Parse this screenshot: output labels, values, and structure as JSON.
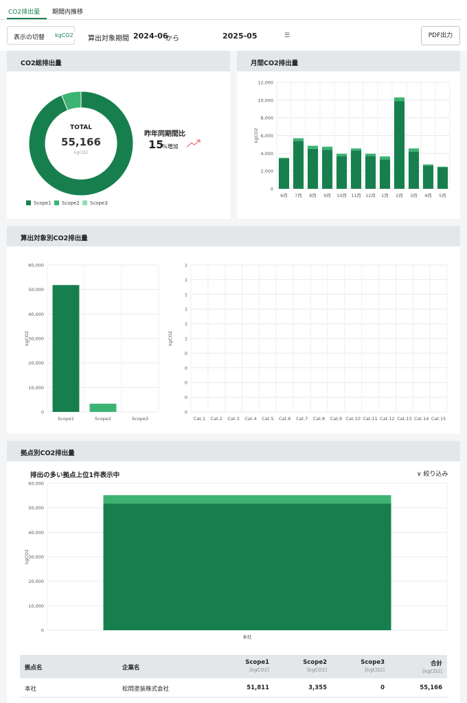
{
  "tabs": [
    {
      "label": "CO2排出量",
      "active": true
    },
    {
      "label": "期間内推移",
      "active": false
    }
  ],
  "toolbar": {
    "toggle_label": "表示の切替",
    "unit_badge": "kgCO2",
    "period_label": "算出対象期間",
    "period_start": "2024-06",
    "period_from": "から",
    "period_end": "2025-05",
    "pdf_label": "PDF出力"
  },
  "colors": {
    "scope1": "#177f4e",
    "scope2": "#3db373",
    "scope3": "#8fe0b0",
    "header_bg": "#e4e7ea",
    "accent": "#1a7f4f"
  },
  "total_panel": {
    "title": "CO2総排出量",
    "center_label": "TOTAL",
    "center_value": "55,166",
    "center_unit": "kgCO2",
    "yoy_label": "昨年同期間比",
    "yoy_value": "15",
    "yoy_unit": "%増加",
    "trend_icon": "trend-up-icon",
    "legend": [
      "Scope1",
      "Scope2",
      "Scope3"
    ]
  },
  "monthly_panel": {
    "title": "月間CO2排出量"
  },
  "target_panel": {
    "title": "算出対象別CO2排出量"
  },
  "site_panel": {
    "title": "拠点別CO2排出量",
    "subtitle": "排出の多い拠点上位1件表示中",
    "filter_label": "絞り込み",
    "filter_icon": "chevron-down-icon"
  },
  "table": {
    "headers": [
      {
        "label": "拠点名",
        "unit": ""
      },
      {
        "label": "企業名",
        "unit": ""
      },
      {
        "label": "Scope1",
        "unit": "[kgCO2]"
      },
      {
        "label": "Scope2",
        "unit": "[kgCO2]"
      },
      {
        "label": "Scope3",
        "unit": "[kgCO2]"
      },
      {
        "label": "合計",
        "unit": "[kgCO2]"
      }
    ],
    "rows": [
      {
        "site": "本社",
        "company": "松岡塗装株式会社",
        "scope1": "51,811",
        "scope2": "3,355",
        "scope3": "0",
        "total": "55,166"
      }
    ]
  },
  "chart_data": [
    {
      "type": "pie",
      "style": "donut",
      "categories": [
        "Scope1",
        "Scope2",
        "Scope3"
      ],
      "values": [
        51811,
        3355,
        0
      ]
    },
    {
      "type": "bar",
      "stacked": true,
      "ylabel": "kgCO2",
      "ylim": [
        0,
        12000
      ],
      "yticks": [
        "0",
        "2,000",
        "4,000",
        "6,000",
        "8,000",
        "10,000",
        "12,000"
      ],
      "categories": [
        "6月",
        "7月",
        "8月",
        "9月",
        "10月",
        "11月",
        "12月",
        "1月",
        "2月",
        "3月",
        "4月",
        "5月"
      ],
      "series": [
        {
          "name": "Scope1",
          "values": [
            3400,
            5400,
            4500,
            4400,
            3700,
            4300,
            3700,
            3300,
            9900,
            4200,
            2600,
            2400
          ]
        },
        {
          "name": "Scope2",
          "values": [
            100,
            300,
            350,
            350,
            250,
            250,
            250,
            350,
            400,
            350,
            150,
            100
          ]
        }
      ],
      "grid": true
    },
    {
      "type": "bar",
      "ylabel": "kgCO2",
      "ylim": [
        0,
        60000
      ],
      "yticks": [
        "0",
        "10,000",
        "20,000",
        "30,000",
        "40,000",
        "50,000",
        "60,000"
      ],
      "categories": [
        "Scope1",
        "Scope2",
        "Scope3"
      ],
      "values": [
        51811,
        3355,
        0
      ],
      "grid": true
    },
    {
      "type": "bar",
      "ylabel": "kgCO2",
      "yticks": [
        "0",
        "0",
        "0",
        "0",
        "0",
        "1",
        "1",
        "1",
        "1",
        "1",
        "1"
      ],
      "categories": [
        "Cat.1",
        "Cat.2",
        "Cat.3",
        "Cat.4",
        "Cat.5",
        "Cat.6",
        "Cat.7",
        "Cat.8",
        "Cat.9",
        "Cat.10",
        "Cat.11",
        "Cat.12",
        "Cat.13",
        "Cat.14",
        "Cat.15"
      ],
      "values": [
        0,
        0,
        0,
        0,
        0,
        0,
        0,
        0,
        0,
        0,
        0,
        0,
        0,
        0,
        0
      ],
      "grid": true
    },
    {
      "type": "bar",
      "stacked": true,
      "ylabel": "kgCO2",
      "ylim": [
        0,
        60000
      ],
      "yticks": [
        "0",
        "10,000",
        "20,000",
        "30,000",
        "40,000",
        "50,000",
        "60,000"
      ],
      "categories": [
        "本社"
      ],
      "series": [
        {
          "name": "Scope1",
          "values": [
            51811
          ]
        },
        {
          "name": "Scope2",
          "values": [
            3355
          ]
        }
      ],
      "grid": true
    }
  ]
}
